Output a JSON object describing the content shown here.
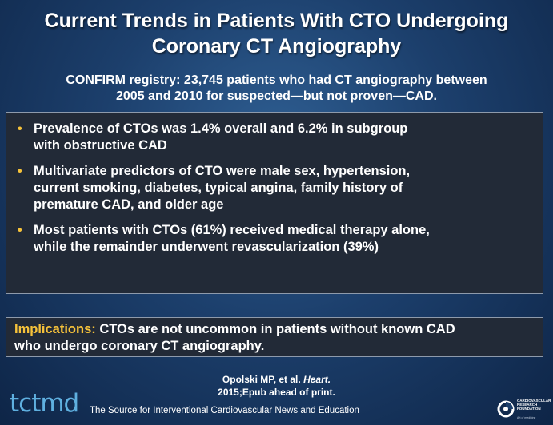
{
  "slide": {
    "title_line1": "Current Trends in Patients With CTO Undergoing",
    "title_line2": "Coronary CT Angiography",
    "subtitle_line1": "CONFIRM registry: 23,745 patients who had CT angiography between",
    "subtitle_line2": "2005 and 2010 for suspected—but not proven—CAD."
  },
  "bullets": [
    {
      "line1": "Prevalence of CTOs was 1.4% overall and 6.2% in subgroup",
      "line2": "with obstructive CAD"
    },
    {
      "line1": "Multivariate predictors of CTO were male sex, hypertension,",
      "line2": "current smoking, diabetes, typical angina, family history of",
      "line3": "premature CAD, and older age"
    },
    {
      "line1": "Most patients with CTOs (61%) received medical therapy alone,",
      "line2": "while the remainder underwent revascularization (39%)"
    }
  ],
  "bullet_symbol": "•",
  "implications": {
    "label": "Implications:",
    "text_line1": " CTOs are not uncommon in patients without known CAD",
    "text_line2": "who undergo coronary CT angiography."
  },
  "citation": {
    "authors": "Opolski MP, et al. ",
    "journal": "Heart.",
    "details": "2015;Epub ahead of print."
  },
  "footer": {
    "logo_text": "tctmd",
    "tagline": "The Source for Interventional Cardiovascular News and Education",
    "crf_name_line1": "CARDIOVASCULAR",
    "crf_name_line2": "RESEARCH",
    "crf_name_line3": "FOUNDATION",
    "crf_sub": "Art of medicine"
  },
  "colors": {
    "accent_yellow": "#f6c23a",
    "logo_blue": "#5fb0e0",
    "box_fill": "#222a37",
    "box_border": "#8e9aab"
  },
  "icons": {
    "crf": "crf-logo-icon"
  }
}
